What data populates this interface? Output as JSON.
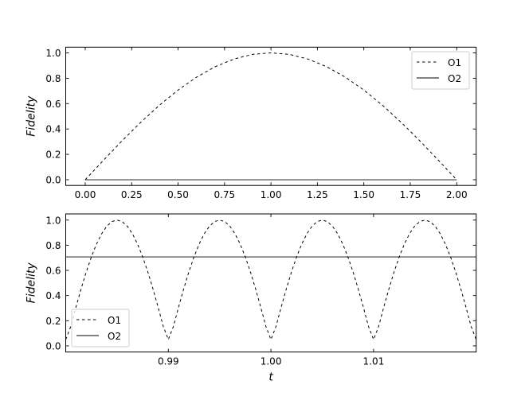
{
  "chart_data": [
    {
      "type": "line",
      "title": "",
      "xlabel": "",
      "ylabel": "Fidelity",
      "xlim": [
        -0.105,
        2.105
      ],
      "ylim": [
        -0.045,
        1.045
      ],
      "xticks": [
        0.0,
        0.25,
        0.5,
        0.75,
        1.0,
        1.25,
        1.5,
        1.75,
        2.0
      ],
      "xtick_labels": [
        "0.00",
        "0.25",
        "0.50",
        "0.75",
        "1.00",
        "1.25",
        "1.50",
        "1.75",
        "2.00"
      ],
      "yticks": [
        0.0,
        0.2,
        0.4,
        0.6,
        0.8,
        1.0
      ],
      "ytick_labels": [
        "0.0",
        "0.2",
        "0.4",
        "0.6",
        "0.8",
        "1.0"
      ],
      "grid": false,
      "legend": "top-right",
      "series": [
        {
          "name": "O1",
          "style": "dashed",
          "color": "#000000",
          "x": [
            0,
            0.1,
            0.2,
            0.3,
            0.4,
            0.5,
            0.6,
            0.7,
            0.8,
            0.9,
            1.0,
            1.1,
            1.2,
            1.3,
            1.4,
            1.5,
            1.6,
            1.7,
            1.8,
            1.9,
            2.0
          ],
          "y": [
            0,
            0.156,
            0.309,
            0.454,
            0.588,
            0.707,
            0.809,
            0.891,
            0.951,
            0.988,
            1.0,
            0.988,
            0.951,
            0.891,
            0.809,
            0.707,
            0.588,
            0.454,
            0.309,
            0.156,
            0
          ]
        },
        {
          "name": "O2",
          "style": "solid",
          "color": "#000000",
          "x": [
            0,
            2.0
          ],
          "y": [
            0,
            0
          ]
        }
      ]
    },
    {
      "type": "line",
      "title": "",
      "xlabel": "t",
      "ylabel": "Fidelity",
      "xlim": [
        0.98,
        1.02
      ],
      "ylim": [
        -0.049,
        1.049
      ],
      "xticks": [
        0.99,
        1.0,
        1.01
      ],
      "xtick_labels": [
        "0.99",
        "1.00",
        "1.01"
      ],
      "yticks": [
        0.0,
        0.2,
        0.4,
        0.6,
        0.8,
        1.0
      ],
      "ytick_labels": [
        "0.0",
        "0.2",
        "0.4",
        "0.6",
        "0.8",
        "1.0"
      ],
      "grid": false,
      "legend": "bottom-left",
      "series": [
        {
          "name": "O1",
          "style": "dashed",
          "color": "#000000",
          "x_start": 0.98,
          "x_step": 0.0005,
          "y": [
            0.05,
            0.156,
            0.309,
            0.454,
            0.588,
            0.707,
            0.809,
            0.891,
            0.951,
            0.988,
            1.0,
            0.988,
            0.951,
            0.891,
            0.809,
            0.707,
            0.588,
            0.454,
            0.309,
            0.156,
            0.05,
            0.156,
            0.309,
            0.454,
            0.588,
            0.707,
            0.809,
            0.891,
            0.951,
            0.988,
            1.0,
            0.988,
            0.951,
            0.891,
            0.809,
            0.707,
            0.588,
            0.454,
            0.309,
            0.156,
            0.05,
            0.156,
            0.309,
            0.454,
            0.588,
            0.707,
            0.809,
            0.891,
            0.951,
            0.988,
            1.0,
            0.988,
            0.951,
            0.891,
            0.809,
            0.707,
            0.588,
            0.454,
            0.309,
            0.156,
            0.05,
            0.156,
            0.309,
            0.454,
            0.588,
            0.707,
            0.809,
            0.891,
            0.951,
            0.988,
            1.0,
            0.988,
            0.951,
            0.891,
            0.809,
            0.707,
            0.588,
            0.454,
            0.309,
            0.156,
            0.05
          ]
        },
        {
          "name": "O2",
          "style": "solid",
          "color": "#000000",
          "x": [
            0.98,
            1.02
          ],
          "y": [
            0.707,
            0.707
          ]
        }
      ]
    }
  ]
}
